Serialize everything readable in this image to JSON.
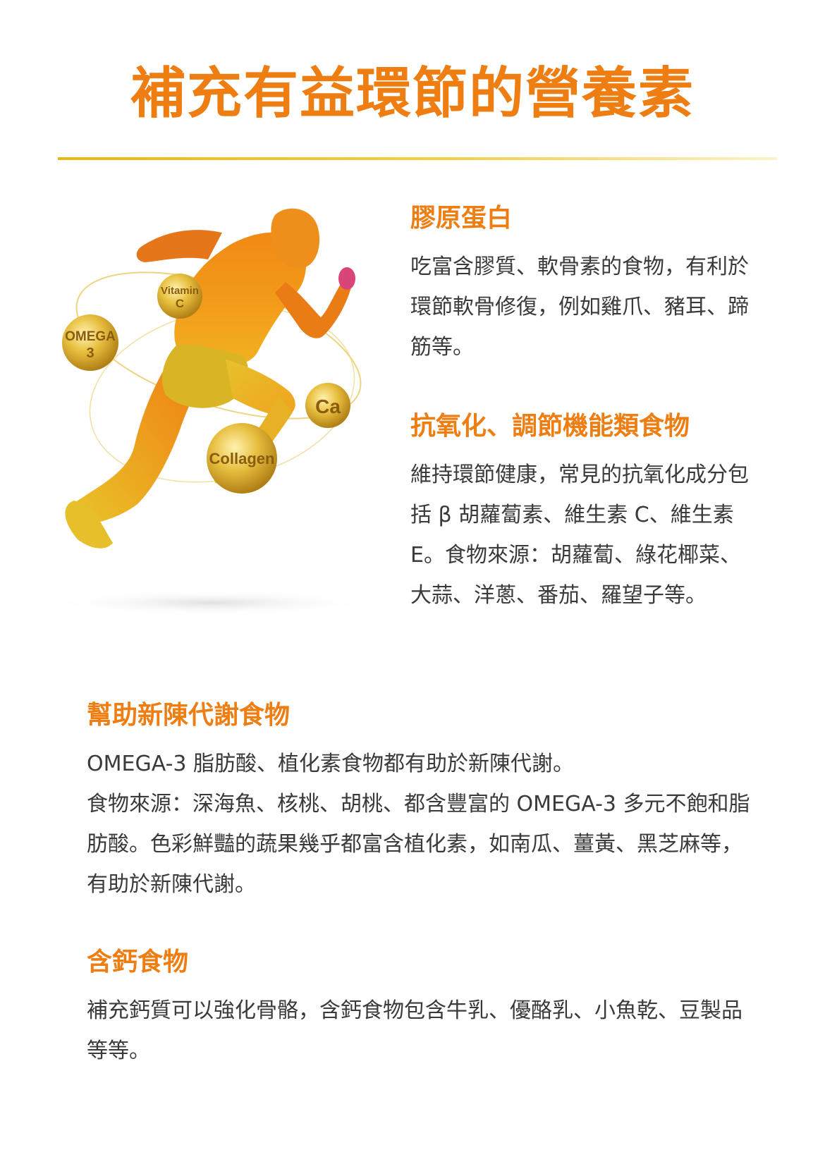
{
  "title": "補充有益環節的營養素",
  "figure": {
    "bubbles": {
      "vitamin_c_line1": "Vitamin",
      "vitamin_c_line2": "C",
      "omega3_line1": "OMEGA",
      "omega3_line2": "3",
      "ca": "Ca",
      "collagen": "Collagen"
    }
  },
  "sections": {
    "collagen": {
      "title": "膠原蛋白",
      "body": "吃富含膠質、軟骨素的食物，有利於環節軟骨修復，例如雞爪、豬耳、蹄筋等。"
    },
    "antioxidant": {
      "title": "抗氧化、調節機能類食物",
      "body": "維持環節健康，常見的抗氧化成分包括 β 胡蘿蔔素、維生素 C、維生素 E。食物來源：胡蘿蔔、綠花椰菜、大蒜、洋蔥、番茄、羅望子等。"
    },
    "metabolism": {
      "title": "幫助新陳代謝食物",
      "body_line1": "OMEGA-3 脂肪酸、植化素食物都有助於新陳代謝。",
      "body_line2": "食物來源：深海魚、核桃、胡桃、都含豐富的 OMEGA-3 多元不飽和脂肪酸。色彩鮮豔的蔬果幾乎都富含植化素，如南瓜、薑黃、黑芝麻等，有助於新陳代謝。"
    },
    "calcium": {
      "title": "含鈣食物",
      "body": "補充鈣質可以強化骨骼，含鈣食物包含牛乳、優酪乳、小魚乾、豆製品等等。"
    }
  }
}
